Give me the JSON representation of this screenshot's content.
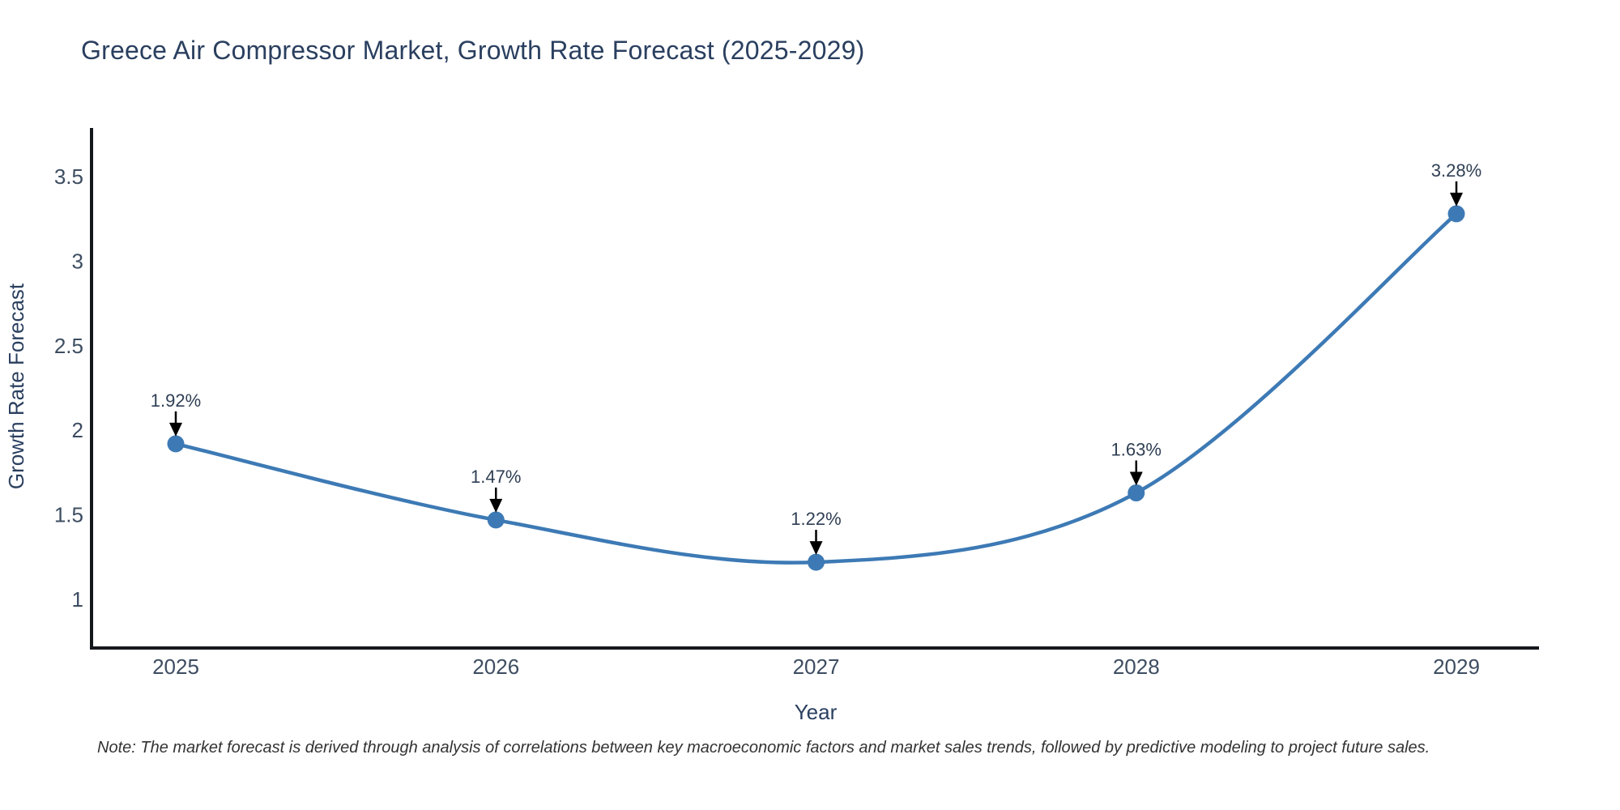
{
  "title": "Greece Air Compressor Market, Growth Rate Forecast (2025-2029)",
  "note": "Note: The market forecast is derived through analysis of correlations between key macroeconomic factors and market sales trends, followed by predictive modeling to project future sales.",
  "chart_data": {
    "type": "line",
    "line_shape": "spline",
    "title": "Greece Air Compressor Market, Growth Rate Forecast (2025-2029)",
    "xlabel": "Year",
    "ylabel": "Growth Rate Forecast",
    "categories": [
      "2025",
      "2026",
      "2027",
      "2028",
      "2029"
    ],
    "series": [
      {
        "name": "Growth Rate Forecast",
        "values": [
          1.92,
          1.47,
          1.22,
          1.63,
          3.28
        ],
        "point_labels": [
          "1.92%",
          "1.47%",
          "1.22%",
          "1.63%",
          "3.28%"
        ]
      }
    ],
    "yticks": [
      1,
      1.5,
      2,
      2.5,
      3,
      3.5
    ],
    "ylim": [
      0.71,
      3.79
    ],
    "grid": false,
    "legend_visible": false,
    "annotations_have_arrows": true,
    "colors": {
      "line": "#3d7ab5",
      "marker": "#3d7ab5",
      "axis": "#14181c",
      "title_text": "#2a3f5f",
      "tick_text": "#3d4d61",
      "annotation_text": "#2f3f54",
      "arrow": "#000000",
      "note_text": "#333333",
      "background": "#ffffff"
    }
  }
}
